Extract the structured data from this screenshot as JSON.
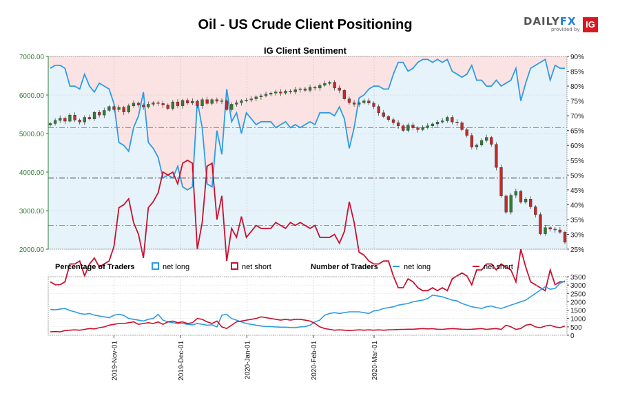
{
  "title": "Oil - US Crude Client Positioning",
  "logo": {
    "name": "DAILYFX",
    "part1": "DAILY",
    "part2": "FX",
    "provided_by": "provided by",
    "ig": "IG"
  },
  "chart_data": [
    {
      "type": "candlestick",
      "title": "IG Client Sentiment",
      "left_axis": {
        "ticks": [
          "7000.00",
          "6000.00",
          "5000.00",
          "4000.00",
          "3000.00",
          "2000.00"
        ],
        "range": [
          2000,
          7000
        ]
      },
      "right_axis": {
        "ticks": [
          "90%",
          "85%",
          "80%",
          "75%",
          "70%",
          "65%",
          "60%",
          "55%",
          "50%",
          "45%",
          "40%",
          "35%",
          "30%",
          "25%"
        ],
        "range": [
          25,
          90
        ]
      },
      "x_ticks": [
        "2019-Nov-01",
        "2019-Dec-01",
        "2020-Jan-01",
        "2020-Feb-01",
        "2020-Mar-01"
      ],
      "x_range": [
        "2019-10-03",
        "2020-03-29"
      ],
      "price_close": [
        5260,
        5340,
        5400,
        5320,
        5480,
        5350,
        5300,
        5420,
        5380,
        5550,
        5480,
        5600,
        5700,
        5620,
        5680,
        5560,
        5720,
        5790,
        5740,
        5690,
        5760,
        5800,
        5780,
        5740,
        5650,
        5820,
        5720,
        5860,
        5790,
        5840,
        5720,
        5880,
        5780,
        5880,
        5840,
        5850,
        5620,
        5760,
        5800,
        5850,
        5870,
        5900,
        5950,
        5980,
        6020,
        6050,
        6080,
        6050,
        6100,
        6080,
        6140,
        6160,
        6120,
        6200,
        6180,
        6250,
        6300,
        6330,
        6180,
        6120,
        5900,
        5800,
        5760,
        5800,
        5850,
        5790,
        5700,
        5540,
        5440,
        5360,
        5280,
        5200,
        5080,
        5220,
        5150,
        5100,
        5160,
        5200,
        5250,
        5300,
        5330,
        5420,
        5300,
        5280,
        5100,
        4950,
        4650,
        4700,
        4820,
        4900,
        4720,
        4120,
        3380,
        2960,
        3400,
        3500,
        3220,
        3300,
        3100,
        2900,
        2400,
        2560,
        2520,
        2500,
        2440,
        2180
      ],
      "sentiment_long": [
        86,
        87,
        87,
        86,
        80,
        80,
        79,
        84,
        80,
        78,
        81,
        80,
        79,
        74,
        61,
        60,
        58,
        66,
        70,
        78,
        61,
        59,
        56,
        49,
        50,
        49,
        53,
        46,
        45,
        46,
        75,
        66,
        47,
        46,
        65,
        57,
        79,
        68,
        71,
        64,
        71,
        69,
        67,
        68,
        68,
        68,
        66,
        67,
        68,
        66,
        67,
        66,
        67,
        68,
        67,
        71,
        71,
        71,
        70,
        73,
        69,
        59,
        66,
        76,
        77,
        79,
        80,
        80,
        79,
        79,
        84,
        88,
        88,
        85,
        86,
        88,
        89,
        89,
        88,
        89,
        88,
        89,
        85,
        84,
        83,
        84,
        87,
        82,
        82,
        80,
        80,
        82,
        80,
        81,
        82,
        86,
        75,
        81,
        86,
        87,
        88,
        89,
        82,
        87,
        86,
        86
      ],
      "sentiment_short": [
        14,
        13,
        13,
        14,
        20,
        20,
        21,
        16,
        20,
        22,
        19,
        20,
        21,
        26,
        39,
        40,
        42,
        34,
        30,
        22,
        39,
        41,
        44,
        51,
        50,
        51,
        47,
        54,
        55,
        54,
        25,
        34,
        53,
        54,
        35,
        43,
        21,
        32,
        29,
        36,
        29,
        31,
        33,
        32,
        32,
        32,
        34,
        33,
        32,
        34,
        33,
        34,
        33,
        32,
        33,
        29,
        29,
        29,
        30,
        27,
        31,
        41,
        34,
        24,
        23,
        21,
        20,
        20,
        21,
        21,
        16,
        12,
        12,
        15,
        14,
        12,
        11,
        11,
        12,
        11,
        12,
        11,
        15,
        16,
        17,
        16,
        13,
        18,
        18,
        20,
        20,
        18,
        20,
        19,
        18,
        14,
        25,
        19,
        14,
        13,
        12,
        11,
        18,
        13,
        14,
        14
      ],
      "sentiment_lines": [
        {
          "level": 66,
          "style": "dash-dot"
        },
        {
          "level": 49,
          "style": "dash-dot-thick"
        },
        {
          "level": 33,
          "style": "dash-dot"
        }
      ],
      "colors": {
        "long": "#2e9be4",
        "short": "#c8102e",
        "up_candle": "#2e7d32",
        "down_candle": "#c62828",
        "long_fill": "#e6f3fb",
        "short_fill": "#fbe3e3"
      }
    },
    {
      "type": "line",
      "right_axis": {
        "ticks": [
          "3500",
          "3000",
          "2500",
          "2000",
          "1500",
          "1000",
          "500",
          "0"
        ],
        "range": [
          0,
          3500
        ]
      },
      "series": [
        {
          "name": "net long",
          "values": [
            1540,
            1520,
            1560,
            1600,
            1480,
            1400,
            1300,
            1250,
            1300,
            1200,
            1150,
            1100,
            1050,
            1200,
            1250,
            1180,
            1000,
            950,
            900,
            850,
            950,
            1000,
            1250,
            900,
            800,
            750,
            700,
            700,
            650,
            620,
            700,
            650,
            600,
            620,
            500,
            1200,
            1250,
            1000,
            900,
            800,
            700,
            650,
            600,
            550,
            520,
            520,
            500,
            480,
            480,
            460,
            450,
            500,
            520,
            600,
            800,
            900,
            1200,
            1300,
            1350,
            1300,
            1350,
            1400,
            1400,
            1400,
            1350,
            1300,
            1450,
            1500,
            1600,
            1650,
            1700,
            1800,
            1850,
            1900,
            2000,
            2050,
            2100,
            2200,
            2400,
            2350,
            2300,
            2200,
            2100,
            2050,
            1900,
            1800,
            1700,
            1650,
            1600,
            1700,
            1750,
            1650,
            1600,
            1700,
            1800,
            1900,
            2000,
            2100,
            2300,
            2500,
            2700,
            2900,
            2750,
            2800,
            3100,
            3250
          ]
        },
        {
          "name": "net short",
          "values": [
            200,
            220,
            200,
            280,
            300,
            320,
            300,
            350,
            400,
            380,
            450,
            500,
            600,
            650,
            700,
            700,
            750,
            800,
            650,
            700,
            750,
            700,
            800,
            650,
            800,
            850,
            750,
            800,
            700,
            750,
            1000,
            950,
            800,
            700,
            850,
            500,
            400,
            600,
            800,
            850,
            900,
            950,
            1000,
            1100,
            1050,
            1000,
            950,
            900,
            950,
            900,
            950,
            950,
            900,
            850,
            700,
            500,
            400,
            350,
            300,
            320,
            300,
            280,
            300,
            320,
            300,
            320,
            300,
            320,
            300,
            320,
            330,
            340,
            350,
            360,
            360,
            380,
            400,
            380,
            390,
            360,
            350,
            380,
            400,
            380,
            360,
            350,
            360,
            380,
            400,
            350,
            380,
            400,
            350,
            600,
            500,
            350,
            400,
            600,
            650,
            500,
            450,
            550,
            600,
            500,
            450,
            550
          ]
        }
      ]
    }
  ],
  "legend": {
    "pct_title": "Percentage of Traders",
    "pct_long": "net long",
    "pct_short": "net short",
    "num_title": "Number of Traders",
    "num_long": "net long",
    "num_short": "net short"
  }
}
